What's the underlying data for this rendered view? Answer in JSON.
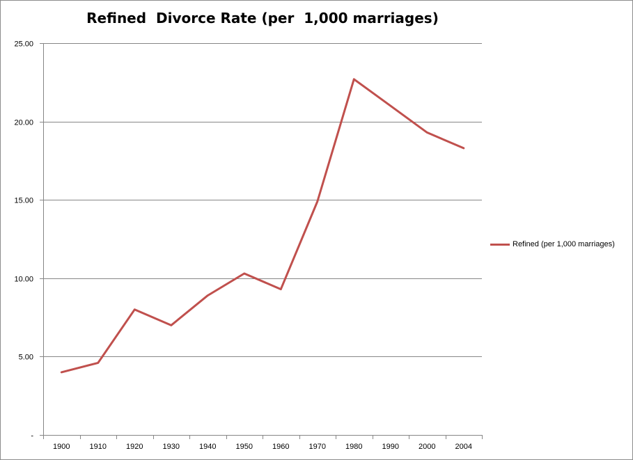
{
  "chart_data": {
    "type": "line",
    "title": "Refined  Divorce Rate (per  1,000 marriages)",
    "categories": [
      "1900",
      "1910",
      "1920",
      "1930",
      "1940",
      "1950",
      "1960",
      "1970",
      "1980",
      "1990",
      "2000",
      "2004"
    ],
    "series": [
      {
        "name": "Refined (per 1,000 marriages)",
        "color": "#c0504d",
        "values": [
          4.0,
          4.6,
          8.0,
          7.0,
          8.9,
          10.3,
          9.3,
          14.9,
          22.7,
          21.0,
          19.3,
          18.3
        ]
      }
    ],
    "y_tick_labels": [
      "-",
      "5.00",
      "10.00",
      "15.00",
      "20.00",
      "25.00"
    ],
    "ylim": [
      0,
      25
    ],
    "ytick_step": 5,
    "grid": "horizontal",
    "legend_position": "right",
    "gridline_color": "#868686"
  }
}
